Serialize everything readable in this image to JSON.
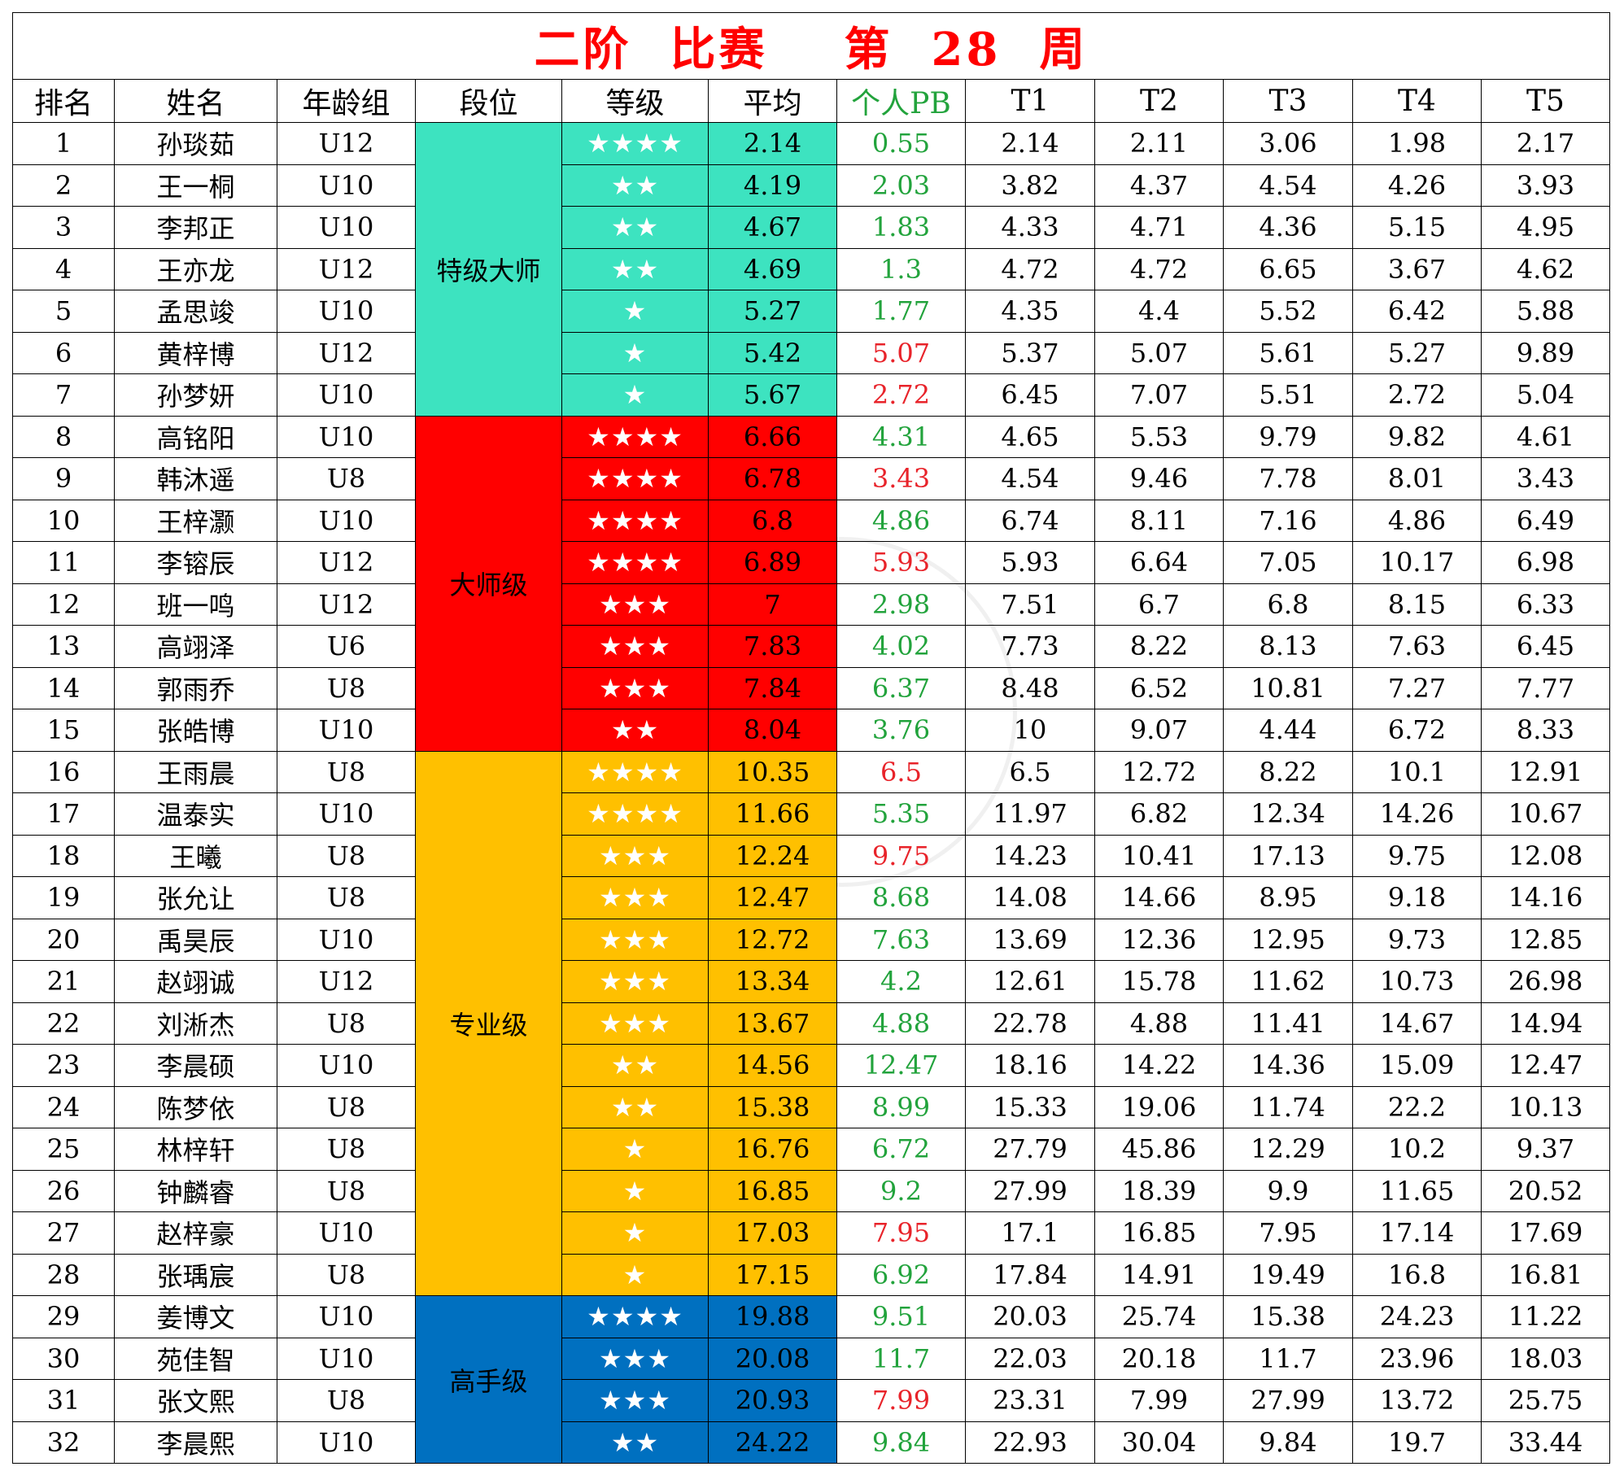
{
  "title": {
    "part1": "二阶",
    "part2": "比赛",
    "part3": "第",
    "part4": "28",
    "part5": "周"
  },
  "headers": [
    "排名",
    "姓名",
    "年龄组",
    "段位",
    "等级",
    "平均",
    "个人PB",
    "T1",
    "T2",
    "T3",
    "T4",
    "T5"
  ],
  "colors": {
    "grandmaster": "#3de3c0",
    "master": "#ff0000",
    "professional": "#ffc000",
    "expert": "#0070c0",
    "pb_green": "#22a33c",
    "pb_red": "#e8232a",
    "title_red": "#ff0000"
  },
  "groups": [
    {
      "level": "特级大师",
      "color_key": "grandmaster",
      "rows": 7
    },
    {
      "level": "大师级",
      "color_key": "master",
      "rows": 8
    },
    {
      "level": "专业级",
      "color_key": "professional",
      "rows": 13
    },
    {
      "level": "高手级",
      "color_key": "expert",
      "rows": 4
    }
  ],
  "rows": [
    {
      "rank": "1",
      "name": "孙琰茹",
      "age": "U12",
      "stars": "★★★★",
      "avg": "2.14",
      "pb": "0.55",
      "pb_color": "green",
      "t": [
        "2.14",
        "2.11",
        "3.06",
        "1.98",
        "2.17"
      ]
    },
    {
      "rank": "2",
      "name": "王一桐",
      "age": "U10",
      "stars": "★★",
      "avg": "4.19",
      "pb": "2.03",
      "pb_color": "green",
      "t": [
        "3.82",
        "4.37",
        "4.54",
        "4.26",
        "3.93"
      ]
    },
    {
      "rank": "3",
      "name": "李邦正",
      "age": "U10",
      "stars": "★★",
      "avg": "4.67",
      "pb": "1.83",
      "pb_color": "green",
      "t": [
        "4.33",
        "4.71",
        "4.36",
        "5.15",
        "4.95"
      ]
    },
    {
      "rank": "4",
      "name": "王亦龙",
      "age": "U12",
      "stars": "★★",
      "avg": "4.69",
      "pb": "1.3",
      "pb_color": "green",
      "t": [
        "4.72",
        "4.72",
        "6.65",
        "3.67",
        "4.62"
      ]
    },
    {
      "rank": "5",
      "name": "孟思竣",
      "age": "U10",
      "stars": "★",
      "avg": "5.27",
      "pb": "1.77",
      "pb_color": "green",
      "t": [
        "4.35",
        "4.4",
        "5.52",
        "6.42",
        "5.88"
      ]
    },
    {
      "rank": "6",
      "name": "黄梓博",
      "age": "U12",
      "stars": "★",
      "avg": "5.42",
      "pb": "5.07",
      "pb_color": "red",
      "t": [
        "5.37",
        "5.07",
        "5.61",
        "5.27",
        "9.89"
      ]
    },
    {
      "rank": "7",
      "name": "孙梦妍",
      "age": "U10",
      "stars": "★",
      "avg": "5.67",
      "pb": "2.72",
      "pb_color": "red",
      "t": [
        "6.45",
        "7.07",
        "5.51",
        "2.72",
        "5.04"
      ]
    },
    {
      "rank": "8",
      "name": "高铭阳",
      "age": "U10",
      "stars": "★★★★",
      "avg": "6.66",
      "pb": "4.31",
      "pb_color": "green",
      "t": [
        "4.65",
        "5.53",
        "9.79",
        "9.82",
        "4.61"
      ]
    },
    {
      "rank": "9",
      "name": "韩沐遥",
      "age": "U8",
      "stars": "★★★★",
      "avg": "6.78",
      "pb": "3.43",
      "pb_color": "red",
      "t": [
        "4.54",
        "9.46",
        "7.78",
        "8.01",
        "3.43"
      ]
    },
    {
      "rank": "10",
      "name": "王梓灏",
      "age": "U10",
      "stars": "★★★★",
      "avg": "6.8",
      "pb": "4.86",
      "pb_color": "green",
      "t": [
        "6.74",
        "8.11",
        "7.16",
        "4.86",
        "6.49"
      ]
    },
    {
      "rank": "11",
      "name": "李镕辰",
      "age": "U12",
      "stars": "★★★★",
      "avg": "6.89",
      "pb": "5.93",
      "pb_color": "red",
      "t": [
        "5.93",
        "6.64",
        "7.05",
        "10.17",
        "6.98"
      ]
    },
    {
      "rank": "12",
      "name": "班一鸣",
      "age": "U12",
      "stars": "★★★",
      "avg": "7",
      "pb": "2.98",
      "pb_color": "green",
      "t": [
        "7.51",
        "6.7",
        "6.8",
        "8.15",
        "6.33"
      ]
    },
    {
      "rank": "13",
      "name": "高翊泽",
      "age": "U6",
      "stars": "★★★",
      "avg": "7.83",
      "pb": "4.02",
      "pb_color": "green",
      "t": [
        "7.73",
        "8.22",
        "8.13",
        "7.63",
        "6.45"
      ]
    },
    {
      "rank": "14",
      "name": "郭雨乔",
      "age": "U8",
      "stars": "★★★",
      "avg": "7.84",
      "pb": "6.37",
      "pb_color": "green",
      "t": [
        "8.48",
        "6.52",
        "10.81",
        "7.27",
        "7.77"
      ]
    },
    {
      "rank": "15",
      "name": "张皓博",
      "age": "U10",
      "stars": "★★",
      "avg": "8.04",
      "pb": "3.76",
      "pb_color": "green",
      "t": [
        "10",
        "9.07",
        "4.44",
        "6.72",
        "8.33"
      ]
    },
    {
      "rank": "16",
      "name": "王雨晨",
      "age": "U8",
      "stars": "★★★★",
      "avg": "10.35",
      "pb": "6.5",
      "pb_color": "red",
      "t": [
        "6.5",
        "12.72",
        "8.22",
        "10.1",
        "12.91"
      ]
    },
    {
      "rank": "17",
      "name": "温泰实",
      "age": "U10",
      "stars": "★★★★",
      "avg": "11.66",
      "pb": "5.35",
      "pb_color": "green",
      "t": [
        "11.97",
        "6.82",
        "12.34",
        "14.26",
        "10.67"
      ]
    },
    {
      "rank": "18",
      "name": "王曦",
      "age": "U8",
      "stars": "★★★",
      "avg": "12.24",
      "pb": "9.75",
      "pb_color": "red",
      "t": [
        "14.23",
        "10.41",
        "17.13",
        "9.75",
        "12.08"
      ]
    },
    {
      "rank": "19",
      "name": "张允让",
      "age": "U8",
      "stars": "★★★",
      "avg": "12.47",
      "pb": "8.68",
      "pb_color": "green",
      "t": [
        "14.08",
        "14.66",
        "8.95",
        "9.18",
        "14.16"
      ]
    },
    {
      "rank": "20",
      "name": "禹昊辰",
      "age": "U10",
      "stars": "★★★",
      "avg": "12.72",
      "pb": "7.63",
      "pb_color": "green",
      "t": [
        "13.69",
        "12.36",
        "12.95",
        "9.73",
        "12.85"
      ]
    },
    {
      "rank": "21",
      "name": "赵翊诚",
      "age": "U12",
      "stars": "★★★",
      "avg": "13.34",
      "pb": "4.2",
      "pb_color": "green",
      "t": [
        "12.61",
        "15.78",
        "11.62",
        "10.73",
        "26.98"
      ]
    },
    {
      "rank": "22",
      "name": "刘淅杰",
      "age": "U8",
      "stars": "★★★",
      "avg": "13.67",
      "pb": "4.88",
      "pb_color": "green",
      "t": [
        "22.78",
        "4.88",
        "11.41",
        "14.67",
        "14.94"
      ]
    },
    {
      "rank": "23",
      "name": "李晨硕",
      "age": "U10",
      "stars": "★★",
      "avg": "14.56",
      "pb": "12.47",
      "pb_color": "green",
      "t": [
        "18.16",
        "14.22",
        "14.36",
        "15.09",
        "12.47"
      ]
    },
    {
      "rank": "24",
      "name": "陈梦依",
      "age": "U8",
      "stars": "★★",
      "avg": "15.38",
      "pb": "8.99",
      "pb_color": "green",
      "t": [
        "15.33",
        "19.06",
        "11.74",
        "22.2",
        "10.13"
      ]
    },
    {
      "rank": "25",
      "name": "林梓轩",
      "age": "U8",
      "stars": "★",
      "avg": "16.76",
      "pb": "6.72",
      "pb_color": "green",
      "t": [
        "27.79",
        "45.86",
        "12.29",
        "10.2",
        "9.37"
      ]
    },
    {
      "rank": "26",
      "name": "钟麟睿",
      "age": "U8",
      "stars": "★",
      "avg": "16.85",
      "pb": "9.2",
      "pb_color": "green",
      "t": [
        "27.99",
        "18.39",
        "9.9",
        "11.65",
        "20.52"
      ]
    },
    {
      "rank": "27",
      "name": "赵梓豪",
      "age": "U10",
      "stars": "★",
      "avg": "17.03",
      "pb": "7.95",
      "pb_color": "red",
      "t": [
        "17.1",
        "16.85",
        "7.95",
        "17.14",
        "17.69"
      ]
    },
    {
      "rank": "28",
      "name": "张瑀宸",
      "age": "U8",
      "stars": "★",
      "avg": "17.15",
      "pb": "6.92",
      "pb_color": "green",
      "t": [
        "17.84",
        "14.91",
        "19.49",
        "16.8",
        "16.81"
      ]
    },
    {
      "rank": "29",
      "name": "姜博文",
      "age": "U10",
      "stars": "★★★★",
      "avg": "19.88",
      "pb": "9.51",
      "pb_color": "green",
      "t": [
        "20.03",
        "25.74",
        "15.38",
        "24.23",
        "11.22"
      ]
    },
    {
      "rank": "30",
      "name": "苑佳智",
      "age": "U10",
      "stars": "★★★",
      "avg": "20.08",
      "pb": "11.7",
      "pb_color": "green",
      "t": [
        "22.03",
        "20.18",
        "11.7",
        "23.96",
        "18.03"
      ]
    },
    {
      "rank": "31",
      "name": "张文熙",
      "age": "U8",
      "stars": "★★★",
      "avg": "20.93",
      "pb": "7.99",
      "pb_color": "red",
      "t": [
        "23.31",
        "7.99",
        "27.99",
        "13.72",
        "25.75"
      ]
    },
    {
      "rank": "32",
      "name": "李晨熙",
      "age": "U10",
      "stars": "★★",
      "avg": "24.22",
      "pb": "9.84",
      "pb_color": "green",
      "t": [
        "22.93",
        "30.04",
        "9.84",
        "19.7",
        "33.44"
      ]
    }
  ]
}
